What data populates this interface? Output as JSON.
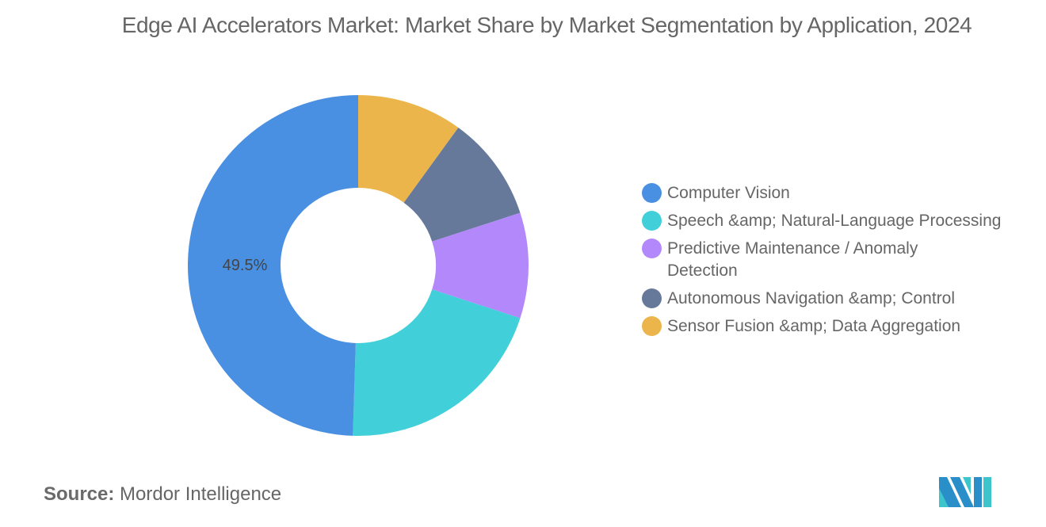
{
  "title": "Edge AI Accelerators Market: Market Share by Market Segmentation by Application, 2024",
  "chart_data": {
    "type": "pie",
    "variant": "donut",
    "title": "Edge AI Accelerators Market: Market Share by Market Segmentation by Application, 2024",
    "categories": [
      "Computer Vision",
      "Speech &amp; Natural-Language Processing",
      "Predictive Maintenance / Anomaly Detection",
      "Autonomous Navigation &amp; Control",
      "Sensor Fusion &amp; Data Aggregation"
    ],
    "values": [
      49.5,
      20.5,
      10.0,
      10.0,
      10.0
    ],
    "colors": [
      "#4a90e2",
      "#41d0d9",
      "#b288fb",
      "#66799b",
      "#ebb54c"
    ],
    "data_labels": [
      {
        "category": "Computer Vision",
        "text": "49.5%"
      }
    ],
    "legend_position": "right",
    "unit": "%"
  },
  "legend": {
    "items": [
      {
        "label": "Computer Vision",
        "color": "#4a90e2"
      },
      {
        "label": "Speech &amp; Natural-Language Processing",
        "color": "#41d0d9"
      },
      {
        "label": "Predictive Maintenance / Anomaly Detection",
        "color": "#b288fb"
      },
      {
        "label": "Autonomous Navigation &amp; Control",
        "color": "#66799b"
      },
      {
        "label": "Sensor Fusion &amp; Data Aggregation",
        "color": "#ebb54c"
      }
    ]
  },
  "footer": {
    "source_label": "Source:",
    "source_value": "Mordor Intelligence"
  }
}
